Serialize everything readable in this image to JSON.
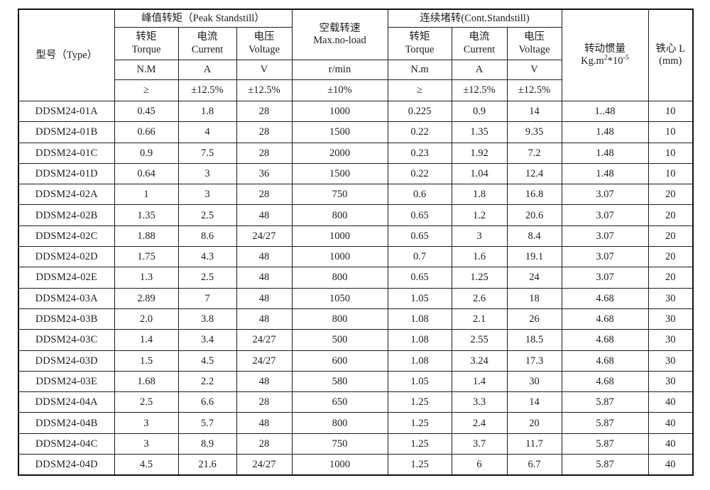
{
  "table": {
    "header": {
      "type": "型号（Type）",
      "peak_group": "峰值转矩（Peak Standstill）",
      "noload_zh": "空载转速",
      "noload_en": "Max.no-load",
      "cont_group": "连续堵转(Cont.Standstill)",
      "inertia_zh": "转动惯量",
      "inertia_unit": {
        "base": "Kg.m",
        "sup1": "2",
        "mid": "*10",
        "sup2": "-5"
      },
      "core_zh": "铁心 L",
      "core_unit": "(mm)",
      "peak_cols": [
        {
          "zh": "转矩",
          "en": "Torque"
        },
        {
          "zh": "电流",
          "en": "Current"
        },
        {
          "zh": "电压",
          "en": "Voltage"
        }
      ],
      "cont_cols": [
        {
          "zh": "转矩",
          "en": "Torque"
        },
        {
          "zh": "电流",
          "en": "Current"
        },
        {
          "zh": "电压",
          "en": "Voltage"
        }
      ],
      "units": [
        "N.M",
        "A",
        "V",
        "r/min",
        "N.m",
        "A",
        "V"
      ],
      "tolerances": [
        "≥",
        "±12.5%",
        "±12.5%",
        "±10%",
        "≥",
        "±12.5%",
        "±12.5%"
      ]
    },
    "rows": [
      [
        "DDSM24-01A",
        "0.45",
        "1.8",
        "28",
        "1000",
        "0.225",
        "0.9",
        "14",
        "1..48",
        "10"
      ],
      [
        "DDSM24-01B",
        "0.66",
        "4",
        "28",
        "1500",
        "0.22",
        "1.35",
        "9.35",
        "1.48",
        "10"
      ],
      [
        "DDSM24-01C",
        "0.9",
        "7.5",
        "28",
        "2000",
        "0.23",
        "1.92",
        "7.2",
        "1.48",
        "10"
      ],
      [
        "DDSM24-01D",
        "0.64",
        "3",
        "36",
        "1500",
        "0.22",
        "1.04",
        "12.4",
        "1.48",
        "10"
      ],
      [
        "DDSM24-02A",
        "1",
        "3",
        "28",
        "750",
        "0.6",
        "1.8",
        "16.8",
        "3.07",
        "20"
      ],
      [
        "DDSM24-02B",
        "1.35",
        "2.5",
        "48",
        "800",
        "0.65",
        "1.2",
        "20.6",
        "3.07",
        "20"
      ],
      [
        "DDSM24-02C",
        "1.88",
        "8.6",
        "24/27",
        "1000",
        "0.65",
        "3",
        "8.4",
        "3.07",
        "20"
      ],
      [
        "DDSM24-02D",
        "1.75",
        "4.3",
        "48",
        "1000",
        "0.7",
        "1.6",
        "19.1",
        "3.07",
        "20"
      ],
      [
        "DDSM24-02E",
        "1.3",
        "2.5",
        "48",
        "800",
        "0.65",
        "1.25",
        "24",
        "3.07",
        "20"
      ],
      [
        "DDSM24-03A",
        "2.89",
        "7",
        "48",
        "1050",
        "1.05",
        "2.6",
        "18",
        "4.68",
        "30"
      ],
      [
        "DDSM24-03B",
        "2.0",
        "3.8",
        "48",
        "800",
        "1.08",
        "2.1",
        "26",
        "4.68",
        "30"
      ],
      [
        "DDSM24-03C",
        "1.4",
        "3.4",
        "24/27",
        "500",
        "1.08",
        "2.55",
        "18.5",
        "4.68",
        "30"
      ],
      [
        "DDSM24-03D",
        "1.5",
        "4.5",
        "24/27",
        "600",
        "1.08",
        "3.24",
        "17.3",
        "4.68",
        "30"
      ],
      [
        "DDSM24-03E",
        "1.68",
        "2.2",
        "48",
        "580",
        "1.05",
        "1.4",
        "30",
        "4.68",
        "30"
      ],
      [
        "DDSM24-04A",
        "2.5",
        "6.6",
        "28",
        "650",
        "1.25",
        "3.3",
        "14",
        "5.87",
        "40"
      ],
      [
        "DDSM24-04B",
        "3",
        "5.7",
        "48",
        "800",
        "1.25",
        "2.4",
        "20",
        "5.87",
        "40"
      ],
      [
        "DDSM24-04C",
        "3",
        "8.9",
        "28",
        "750",
        "1.25",
        "3.7",
        "11.7",
        "5.87",
        "40"
      ],
      [
        "DDSM24-04D",
        "4.5",
        "21.6",
        "24/27",
        "1000",
        "1.25",
        "6",
        "6.7",
        "5.87",
        "40"
      ]
    ]
  }
}
